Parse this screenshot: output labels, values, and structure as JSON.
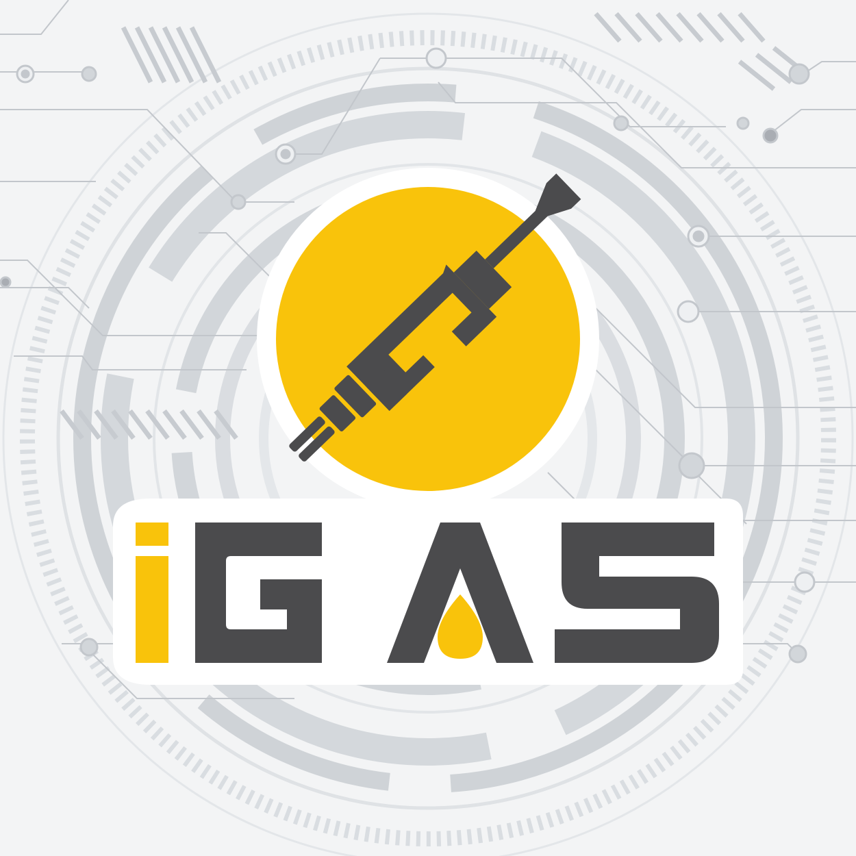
{
  "logo": {
    "brand_text": "iGAS",
    "pump_icon": "fuel-nozzle-icon",
    "drop_icon": "fuel-drop-icon"
  },
  "colors": {
    "background": "#f3f4f5",
    "circuit_light": "#dcdfe2",
    "circuit_mid": "#c9cdd1",
    "circuit_line": "#b8bcc1",
    "brand_yellow": "#f9c30b",
    "brand_dark": "#4b4b4d",
    "outline": "#ffffff"
  }
}
